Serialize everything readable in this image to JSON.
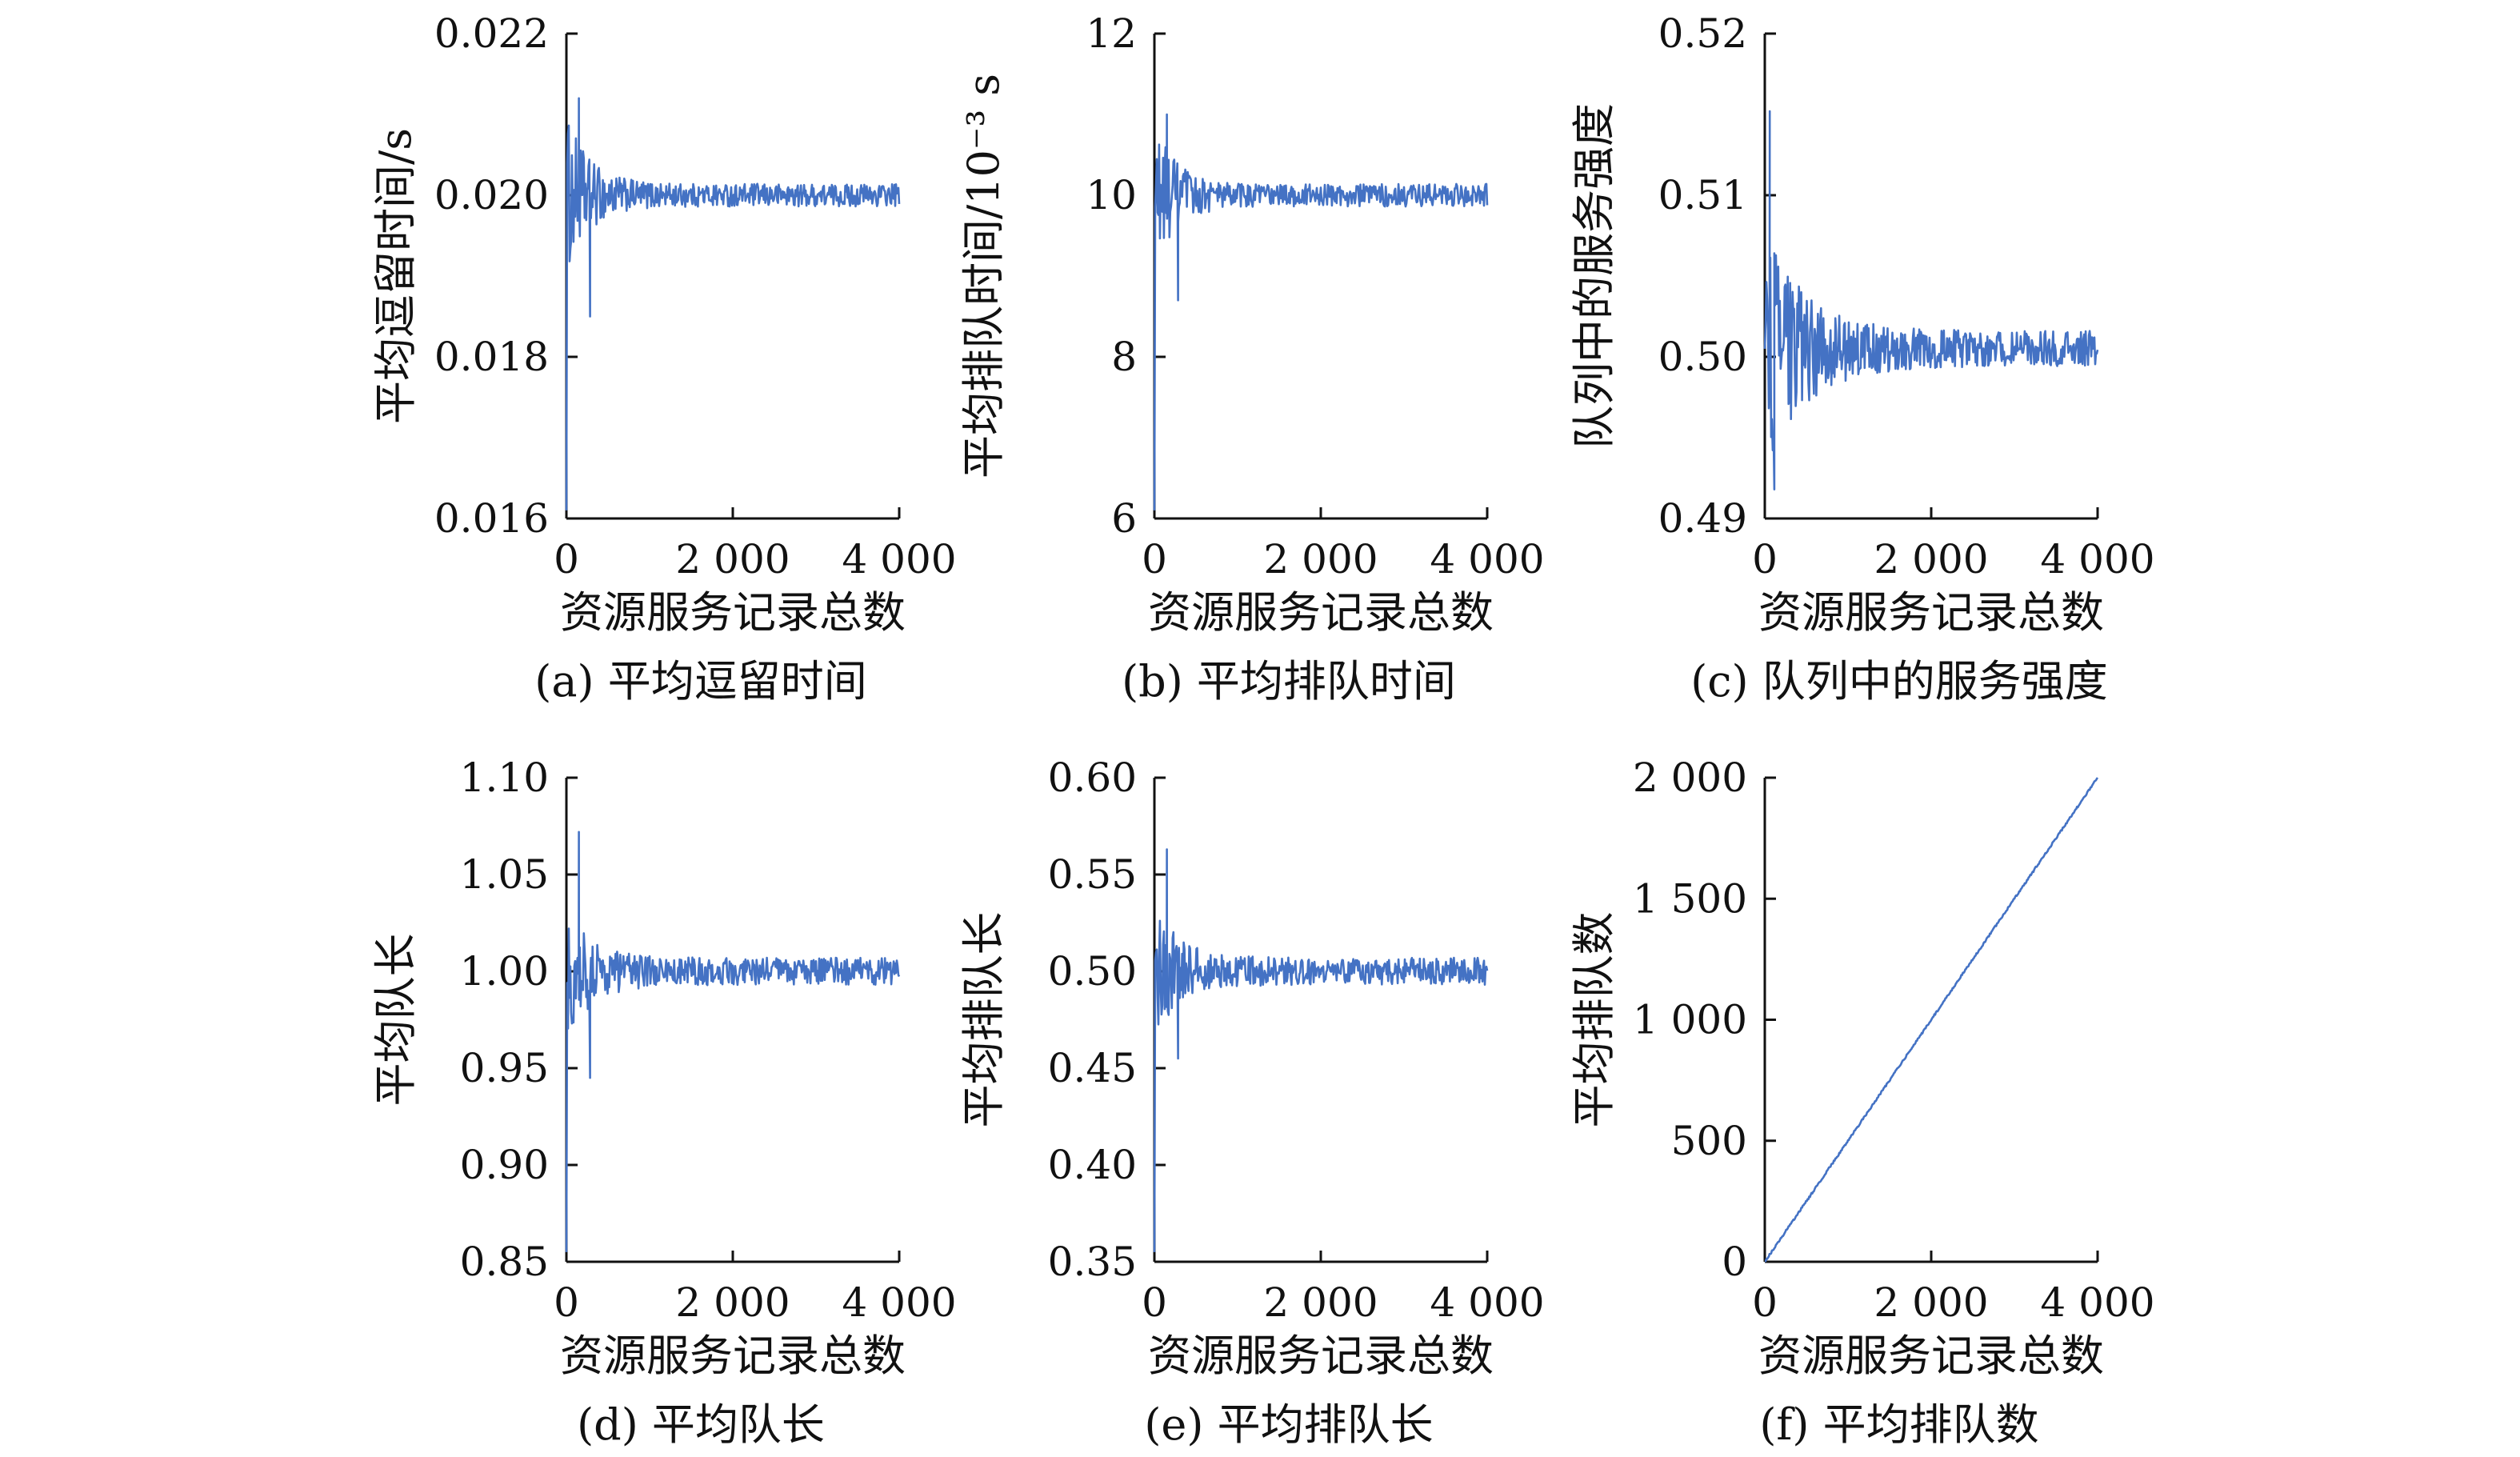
{
  "chart_data": [
    {
      "panel": "a",
      "type": "line",
      "title": "(a) 平均逗留时间",
      "xlabel": "资源服务记录总数",
      "ylabel": "平均逗留时间/s",
      "xlim": [
        0,
        4000
      ],
      "ylim": [
        0.016,
        0.022
      ],
      "xticks": [
        0,
        2000,
        4000
      ],
      "xtick_labels": [
        "0",
        "2 000",
        "4 000"
      ],
      "yticks": [
        0.016,
        0.018,
        0.02,
        0.022
      ],
      "ytick_labels": [
        "0.016",
        "0.018",
        "0.020",
        "0.022"
      ],
      "series": [
        {
          "name": "平均逗留时间",
          "color": "#4472c4",
          "shape": {
            "x_end": 4000,
            "start": 0.0161,
            "mean": 0.02,
            "noise_start": 0.001,
            "noise_end": 0.00014,
            "decay": 280,
            "trend": 0.0,
            "peak_x": 150,
            "peak_y": 0.0212,
            "min_y": 0.0185
          }
        }
      ]
    },
    {
      "panel": "b",
      "type": "line",
      "title": "(b) 平均排队时间",
      "xlabel": "资源服务记录总数",
      "ylabel": "平均排队时间/10⁻³ s",
      "xlim": [
        0,
        4000
      ],
      "ylim": [
        6,
        12
      ],
      "xticks": [
        0,
        2000,
        4000
      ],
      "xtick_labels": [
        "0",
        "2 000",
        "4 000"
      ],
      "yticks": [
        6,
        8,
        10,
        12
      ],
      "ytick_labels": [
        "6",
        "8",
        "10",
        "12"
      ],
      "series": [
        {
          "name": "平均排队时间",
          "color": "#4472c4",
          "shape": {
            "x_end": 4000,
            "start": 6.1,
            "mean": 10.0,
            "noise_start": 0.9,
            "noise_end": 0.14,
            "decay": 280,
            "trend": 0.0,
            "peak_x": 150,
            "peak_y": 11.0,
            "min_y": 8.7
          }
        }
      ]
    },
    {
      "panel": "c",
      "type": "line",
      "title": "(c) 队列中的服务强度",
      "xlabel": "资源服务记录总数",
      "ylabel": "队列中的服务强度",
      "xlim": [
        0,
        4000
      ],
      "ylim": [
        0.49,
        0.52
      ],
      "xticks": [
        0,
        2000,
        4000
      ],
      "xtick_labels": [
        "0",
        "2 000",
        "4 000"
      ],
      "yticks": [
        0.49,
        0.5,
        0.51,
        0.52
      ],
      "ytick_labels": [
        "0.49",
        "0.50",
        "0.51",
        "0.52"
      ],
      "series": [
        {
          "name": "服务强度",
          "color": "#4472c4",
          "shape": {
            "x_end": 4000,
            "start": 0.5005,
            "mean": 0.5005,
            "noise_start": 0.0075,
            "noise_end": 0.0011,
            "decay": 500,
            "trend": 0.0,
            "peak_x": 60,
            "peak_y": 0.5152,
            "min_y": 0.4918
          }
        }
      ]
    },
    {
      "panel": "d",
      "type": "line",
      "title": "(d) 平均队长",
      "xlabel": "资源服务记录总数",
      "ylabel": "平均队长",
      "xlim": [
        0,
        4000
      ],
      "ylim": [
        0.85,
        1.1
      ],
      "xticks": [
        0,
        2000,
        4000
      ],
      "xtick_labels": [
        "0",
        "2 000",
        "4 000"
      ],
      "yticks": [
        0.85,
        0.9,
        0.95,
        1.0,
        1.05,
        1.1
      ],
      "ytick_labels": [
        "0.85",
        "0.90",
        "0.95",
        "1.00",
        "1.05",
        "1.10"
      ],
      "series": [
        {
          "name": "平均队长",
          "color": "#4472c4",
          "shape": {
            "x_end": 4000,
            "start": 0.855,
            "mean": 1.0,
            "noise_start": 0.035,
            "noise_end": 0.007,
            "decay": 320,
            "trend": 0.0,
            "peak_x": 150,
            "peak_y": 1.072,
            "min_y": 0.945
          }
        }
      ]
    },
    {
      "panel": "e",
      "type": "line",
      "title": "(e) 平均排队长",
      "xlabel": "资源服务记录总数",
      "ylabel": "平均排队长",
      "xlim": [
        0,
        4000
      ],
      "ylim": [
        0.35,
        0.6
      ],
      "xticks": [
        0,
        2000,
        4000
      ],
      "xtick_labels": [
        "0",
        "2 000",
        "4 000"
      ],
      "yticks": [
        0.35,
        0.4,
        0.45,
        0.5,
        0.55,
        0.6
      ],
      "ytick_labels": [
        "0.35",
        "0.40",
        "0.45",
        "0.50",
        "0.55",
        "0.60"
      ],
      "series": [
        {
          "name": "平均排队长",
          "color": "#4472c4",
          "shape": {
            "x_end": 4000,
            "start": 0.355,
            "mean": 0.5,
            "noise_start": 0.035,
            "noise_end": 0.007,
            "decay": 320,
            "trend": 0.0,
            "peak_x": 150,
            "peak_y": 0.563,
            "min_y": 0.455
          }
        }
      ]
    },
    {
      "panel": "f",
      "type": "line",
      "title": "(f) 平均排队数",
      "xlabel": "资源服务记录总数",
      "ylabel": "平均排队数",
      "xlim": [
        0,
        4000
      ],
      "ylim": [
        0,
        2000
      ],
      "xticks": [
        0,
        2000,
        4000
      ],
      "xtick_labels": [
        "0",
        "2 000",
        "4 000"
      ],
      "yticks": [
        0,
        500,
        1000,
        1500,
        2000
      ],
      "ytick_labels": [
        "0",
        "500",
        "1 000",
        "1 500",
        "2 000"
      ],
      "series": [
        {
          "name": "平均排队数",
          "color": "#4472c4",
          "shape": {
            "x_end": 4000,
            "start": 0,
            "mean": 0,
            "noise_start": 4,
            "noise_end": 4,
            "decay": 1000,
            "trend": 0.5,
            "peak_x": null,
            "peak_y": null,
            "min_y": null
          }
        }
      ]
    }
  ]
}
